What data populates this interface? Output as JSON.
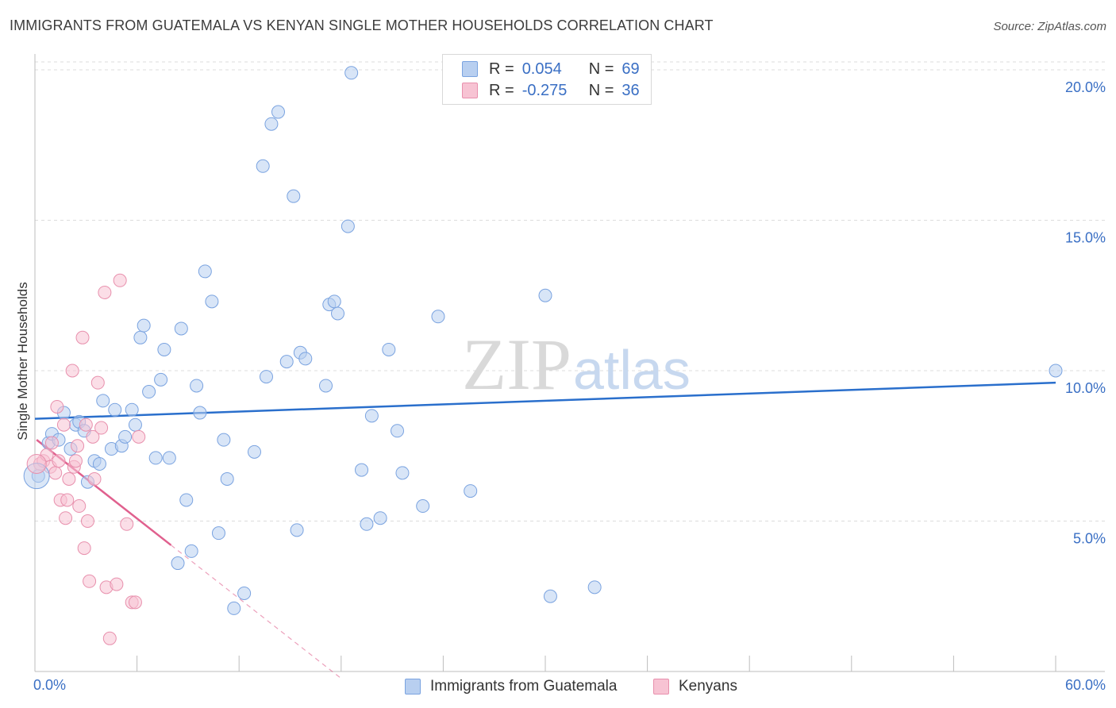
{
  "title": "IMMIGRANTS FROM GUATEMALA VS KENYAN SINGLE MOTHER HOUSEHOLDS CORRELATION CHART",
  "source": "Source: ZipAtlas.com",
  "legend": {
    "rows": [
      {
        "r_label": "R =",
        "r_value": "0.054",
        "n_label": "N =",
        "n_value": "69"
      },
      {
        "r_label": "R =",
        "r_value": "-0.275",
        "n_label": "N =",
        "n_value": "36"
      }
    ]
  },
  "colors": {
    "series_a_fill": "#b8cff0",
    "series_a_stroke": "#7aa3e0",
    "series_a_line": "#2a6fcc",
    "series_b_fill": "#f7c3d3",
    "series_b_stroke": "#e890ad",
    "series_b_line": "#e0608e",
    "accent_text": "#3a6fc4"
  },
  "chart_data": {
    "type": "scatter",
    "title": "IMMIGRANTS FROM GUATEMALA VS KENYAN SINGLE MOTHER HOUSEHOLDS CORRELATION CHART",
    "xlabel": "",
    "ylabel": "Single Mother Households",
    "xlim": [
      0,
      60
    ],
    "ylim": [
      0,
      20
    ],
    "x_tick_labels": [
      "0.0%",
      "60.0%"
    ],
    "y_tick_labels": [
      "5.0%",
      "10.0%",
      "15.0%",
      "20.0%"
    ],
    "y_ticks": [
      5,
      10,
      15,
      20
    ],
    "grid": true,
    "legend_position": "top-center",
    "watermark": "ZIPatlas",
    "series": [
      {
        "name": "Immigrants from Guatemala",
        "r": 0.054,
        "n": 69,
        "trend": {
          "x0": 0,
          "y0": 8.4,
          "x1": 60,
          "y1": 9.6
        },
        "points": [
          [
            0.2,
            6.5
          ],
          [
            0.8,
            7.6
          ],
          [
            1.0,
            7.9
          ],
          [
            1.4,
            7.7
          ],
          [
            1.7,
            8.6
          ],
          [
            2.1,
            7.4
          ],
          [
            2.4,
            8.2
          ],
          [
            2.6,
            8.3
          ],
          [
            2.9,
            8.0
          ],
          [
            3.1,
            6.3
          ],
          [
            3.5,
            7.0
          ],
          [
            3.8,
            6.9
          ],
          [
            4.0,
            9.0
          ],
          [
            4.5,
            7.4
          ],
          [
            4.7,
            8.7
          ],
          [
            5.1,
            7.5
          ],
          [
            5.3,
            7.8
          ],
          [
            5.7,
            8.7
          ],
          [
            5.9,
            8.2
          ],
          [
            6.2,
            11.1
          ],
          [
            6.4,
            11.5
          ],
          [
            6.7,
            9.3
          ],
          [
            7.1,
            7.1
          ],
          [
            7.4,
            9.7
          ],
          [
            7.6,
            10.7
          ],
          [
            7.9,
            7.1
          ],
          [
            8.4,
            3.6
          ],
          [
            8.6,
            11.4
          ],
          [
            8.9,
            5.7
          ],
          [
            9.2,
            4.0
          ],
          [
            9.5,
            9.5
          ],
          [
            9.7,
            8.6
          ],
          [
            10.0,
            13.3
          ],
          [
            10.4,
            12.3
          ],
          [
            10.8,
            4.6
          ],
          [
            11.1,
            7.7
          ],
          [
            11.3,
            6.4
          ],
          [
            11.7,
            2.1
          ],
          [
            12.3,
            2.6
          ],
          [
            12.9,
            7.3
          ],
          [
            13.4,
            16.8
          ],
          [
            13.6,
            9.8
          ],
          [
            13.9,
            18.2
          ],
          [
            14.3,
            18.6
          ],
          [
            14.8,
            10.3
          ],
          [
            15.2,
            15.8
          ],
          [
            15.4,
            4.7
          ],
          [
            15.6,
            10.6
          ],
          [
            15.9,
            10.4
          ],
          [
            17.1,
            9.5
          ],
          [
            17.3,
            12.2
          ],
          [
            17.6,
            12.3
          ],
          [
            17.8,
            11.9
          ],
          [
            18.4,
            14.8
          ],
          [
            18.6,
            19.9
          ],
          [
            19.2,
            6.7
          ],
          [
            19.5,
            4.9
          ],
          [
            19.8,
            8.5
          ],
          [
            20.3,
            5.1
          ],
          [
            20.8,
            10.7
          ],
          [
            21.3,
            8.0
          ],
          [
            21.6,
            6.6
          ],
          [
            22.8,
            5.5
          ],
          [
            23.7,
            11.8
          ],
          [
            25.6,
            6.0
          ],
          [
            30.0,
            12.5
          ],
          [
            30.3,
            2.5
          ],
          [
            32.9,
            2.8
          ],
          [
            60.0,
            10.0
          ]
        ]
      },
      {
        "name": "Kenyans",
        "r": -0.275,
        "n": 36,
        "trend": {
          "x0": 0.1,
          "y0": 7.7,
          "x1": 8.0,
          "y1": 4.2,
          "dash_to_x": 18.0
        },
        "points": [
          [
            0.3,
            6.9
          ],
          [
            0.5,
            7.0
          ],
          [
            0.7,
            7.2
          ],
          [
            0.9,
            6.8
          ],
          [
            1.0,
            7.6
          ],
          [
            1.2,
            6.6
          ],
          [
            1.3,
            8.8
          ],
          [
            1.4,
            7.0
          ],
          [
            1.5,
            5.7
          ],
          [
            1.7,
            8.2
          ],
          [
            1.8,
            5.1
          ],
          [
            1.9,
            5.7
          ],
          [
            2.0,
            6.4
          ],
          [
            2.2,
            10.0
          ],
          [
            2.3,
            6.8
          ],
          [
            2.4,
            7.0
          ],
          [
            2.5,
            7.5
          ],
          [
            2.6,
            5.5
          ],
          [
            2.8,
            11.1
          ],
          [
            2.9,
            4.1
          ],
          [
            3.0,
            8.2
          ],
          [
            3.1,
            5.0
          ],
          [
            3.2,
            3.0
          ],
          [
            3.4,
            7.8
          ],
          [
            3.5,
            6.4
          ],
          [
            3.7,
            9.6
          ],
          [
            3.9,
            8.1
          ],
          [
            4.1,
            12.6
          ],
          [
            4.2,
            2.8
          ],
          [
            4.4,
            1.1
          ],
          [
            4.8,
            2.9
          ],
          [
            5.0,
            13.0
          ],
          [
            5.4,
            4.9
          ],
          [
            5.7,
            2.3
          ],
          [
            5.9,
            2.3
          ],
          [
            6.1,
            7.8
          ]
        ]
      }
    ]
  }
}
